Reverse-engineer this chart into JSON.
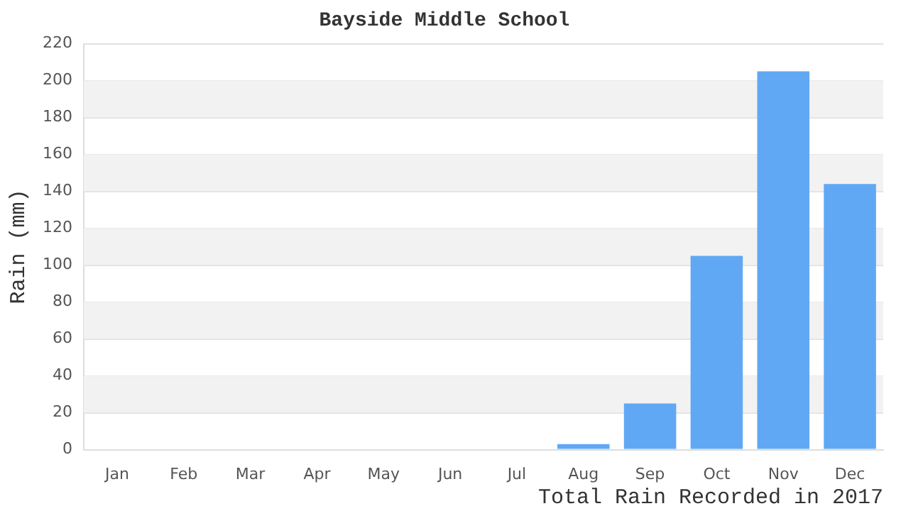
{
  "chart_data": {
    "type": "bar",
    "title": "Bayside Middle School",
    "xlabel": "Total Rain Recorded in 2017",
    "ylabel": "Rain (mm)",
    "categories": [
      "Jan",
      "Feb",
      "Mar",
      "Apr",
      "May",
      "Jun",
      "Jul",
      "Aug",
      "Sep",
      "Oct",
      "Nov",
      "Dec"
    ],
    "values": [
      0,
      0,
      0,
      0,
      0,
      0,
      0,
      3,
      25,
      105,
      205,
      144
    ],
    "color": "#61a8f4",
    "ylim": [
      0,
      220
    ],
    "yticks": [
      0,
      20,
      40,
      60,
      80,
      100,
      120,
      140,
      160,
      180,
      200,
      220
    ],
    "grid": true
  }
}
